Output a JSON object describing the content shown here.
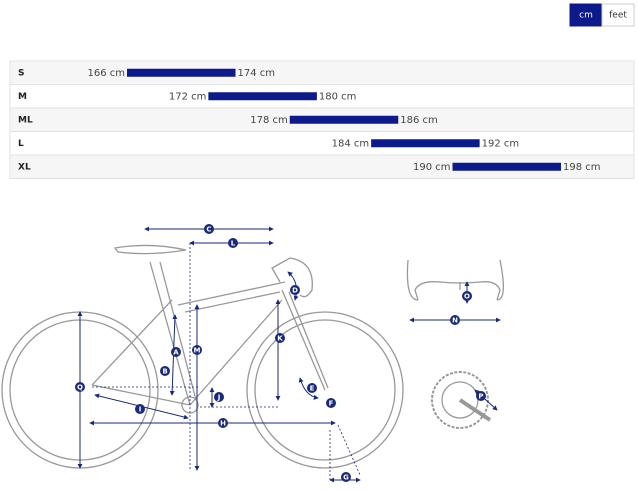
{
  "toggle": {
    "options": [
      "cm",
      "feet"
    ],
    "active": 0
  },
  "chart_data": {
    "type": "range",
    "categories": [
      "S",
      "M",
      "ML",
      "L",
      "XL"
    ],
    "low": [
      166,
      172,
      178,
      184,
      190
    ],
    "high": [
      174,
      180,
      186,
      192,
      198
    ],
    "low_labels": [
      "166 cm",
      "172 cm",
      "178 cm",
      "184 cm",
      "190 cm"
    ],
    "high_labels": [
      "174 cm",
      "180 cm",
      "186 cm",
      "192 cm",
      "198 cm"
    ],
    "color": "#0c1a8c"
  },
  "diagram": {
    "labels": [
      "C",
      "L",
      "D",
      "O",
      "N",
      "K",
      "M",
      "A",
      "B",
      "J",
      "E",
      "F",
      "I",
      "H",
      "Q",
      "G",
      "P"
    ]
  }
}
